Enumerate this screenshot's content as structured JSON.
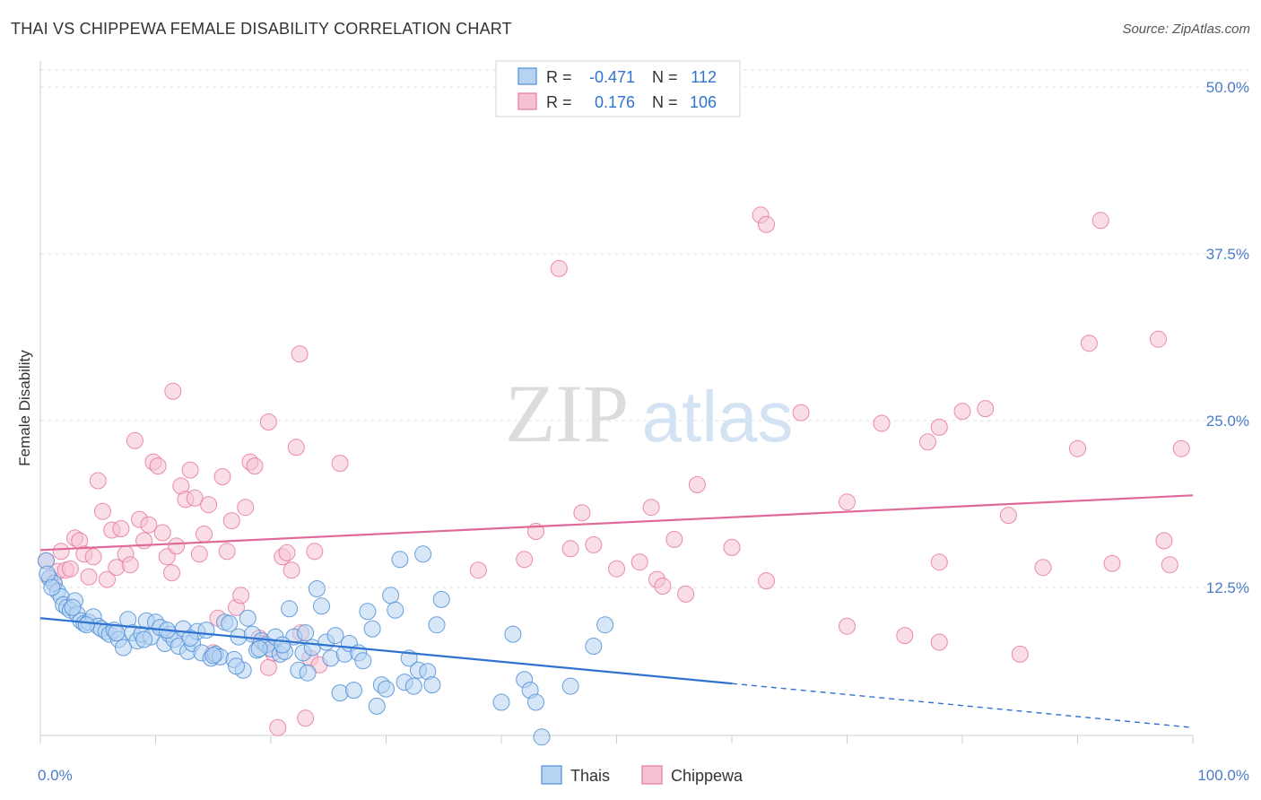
{
  "title": "THAI VS CHIPPEWA FEMALE DISABILITY CORRELATION CHART",
  "source": "Source: ZipAtlas.com",
  "watermark": {
    "zip": "ZIP",
    "atlas": "atlas"
  },
  "colors": {
    "thais": "#4f8fd6",
    "thais_fill": "#b7d3f2",
    "thais_line": "#2f72d0",
    "chippewa": "#e8789c",
    "chippewa_fill": "#f5c2d2",
    "chippewa_line": "#e0699a",
    "tick_text": "#4a7cc7"
  },
  "legend": {
    "rows": [
      {
        "r_label": "R =",
        "r_value": "-0.471",
        "n_label": "N =",
        "n_value": "112"
      },
      {
        "r_label": "R =",
        "r_value": "0.176",
        "n_label": "N =",
        "n_value": "106"
      }
    ]
  },
  "chart_data": {
    "type": "scatter",
    "xlabel": "",
    "ylabel": "Female Disability",
    "x_tick_labels": [
      "0.0%",
      "100.0%"
    ],
    "y_tick_labels": [
      "12.5%",
      "25.0%",
      "37.5%",
      "50.0%"
    ],
    "xlim": [
      0,
      100
    ],
    "ylim": [
      0,
      52
    ],
    "grid": true,
    "legend_position": "top-center",
    "series": [
      {
        "name": "Thais",
        "color": "#4f8fd6",
        "trend": {
          "x": [
            0,
            60
          ],
          "y": [
            10.2,
            5.3
          ],
          "dashed_to": [
            100,
            2.0
          ]
        },
        "points": [
          [
            0.5,
            14.5
          ],
          [
            0.8,
            13.2
          ],
          [
            1.2,
            12.8
          ],
          [
            1.5,
            12.2
          ],
          [
            1.8,
            11.8
          ],
          [
            2.0,
            11.2
          ],
          [
            2.3,
            11.0
          ],
          [
            2.6,
            10.8
          ],
          [
            3.0,
            11.5
          ],
          [
            3.2,
            10.5
          ],
          [
            3.5,
            10.0
          ],
          [
            3.8,
            9.8
          ],
          [
            4.2,
            9.9
          ],
          [
            4.6,
            10.3
          ],
          [
            5.0,
            9.6
          ],
          [
            5.3,
            9.4
          ],
          [
            5.7,
            9.2
          ],
          [
            6.0,
            9.0
          ],
          [
            6.4,
            9.3
          ],
          [
            6.8,
            8.6
          ],
          [
            7.2,
            8.0
          ],
          [
            7.6,
            10.1
          ],
          [
            8.0,
            9.1
          ],
          [
            8.4,
            8.5
          ],
          [
            8.8,
            9.0
          ],
          [
            9.2,
            10.0
          ],
          [
            9.6,
            8.8
          ],
          [
            10.0,
            9.9
          ],
          [
            10.4,
            9.5
          ],
          [
            10.8,
            8.3
          ],
          [
            11.2,
            9.0
          ],
          [
            11.6,
            8.6
          ],
          [
            12.0,
            8.1
          ],
          [
            12.4,
            9.4
          ],
          [
            12.8,
            7.7
          ],
          [
            13.2,
            8.3
          ],
          [
            13.6,
            9.2
          ],
          [
            14.0,
            7.6
          ],
          [
            14.4,
            9.3
          ],
          [
            14.8,
            7.2
          ],
          [
            15.2,
            7.5
          ],
          [
            15.6,
            7.3
          ],
          [
            16.0,
            9.9
          ],
          [
            16.4,
            9.8
          ],
          [
            16.8,
            7.1
          ],
          [
            17.2,
            8.8
          ],
          [
            17.6,
            6.3
          ],
          [
            18.0,
            10.2
          ],
          [
            18.4,
            9.0
          ],
          [
            18.8,
            7.8
          ],
          [
            19.2,
            8.5
          ],
          [
            19.6,
            8.2
          ],
          [
            20.0,
            7.9
          ],
          [
            20.4,
            8.8
          ],
          [
            20.8,
            7.5
          ],
          [
            21.2,
            7.7
          ],
          [
            21.6,
            10.9
          ],
          [
            22.0,
            8.8
          ],
          [
            22.4,
            6.3
          ],
          [
            22.8,
            7.6
          ],
          [
            23.2,
            6.1
          ],
          [
            23.6,
            8.0
          ],
          [
            24.0,
            12.4
          ],
          [
            24.4,
            11.1
          ],
          [
            24.8,
            8.4
          ],
          [
            25.2,
            7.2
          ],
          [
            25.6,
            8.9
          ],
          [
            26.0,
            4.6
          ],
          [
            26.4,
            7.5
          ],
          [
            26.8,
            8.3
          ],
          [
            27.2,
            4.8
          ],
          [
            27.6,
            7.6
          ],
          [
            28.0,
            7.0
          ],
          [
            28.4,
            10.7
          ],
          [
            28.8,
            9.4
          ],
          [
            29.2,
            3.6
          ],
          [
            29.6,
            5.2
          ],
          [
            30.0,
            4.9
          ],
          [
            30.4,
            11.9
          ],
          [
            30.8,
            10.8
          ],
          [
            31.2,
            14.6
          ],
          [
            31.6,
            5.4
          ],
          [
            32.0,
            7.2
          ],
          [
            32.4,
            5.1
          ],
          [
            32.8,
            6.3
          ],
          [
            33.2,
            15.0
          ],
          [
            33.6,
            6.2
          ],
          [
            34.0,
            5.2
          ],
          [
            34.4,
            9.7
          ],
          [
            34.8,
            11.6
          ],
          [
            40.0,
            3.9
          ],
          [
            41.0,
            9.0
          ],
          [
            42.0,
            5.6
          ],
          [
            42.5,
            4.8
          ],
          [
            43.0,
            3.9
          ],
          [
            43.5,
            1.3
          ],
          [
            46.0,
            5.1
          ],
          [
            48.0,
            8.1
          ],
          [
            49.0,
            9.7
          ],
          [
            0.6,
            13.5
          ],
          [
            1.0,
            12.5
          ],
          [
            2.8,
            11.0
          ],
          [
            4.0,
            9.7
          ],
          [
            6.6,
            9.1
          ],
          [
            9.0,
            8.6
          ],
          [
            11.0,
            9.3
          ],
          [
            13.0,
            8.7
          ],
          [
            15.0,
            7.4
          ],
          [
            17.0,
            6.6
          ],
          [
            19.0,
            7.9
          ],
          [
            21.0,
            8.2
          ],
          [
            23.0,
            9.1
          ]
        ]
      },
      {
        "name": "Chippewa",
        "color": "#e8789c",
        "trend": {
          "x": [
            0,
            100
          ],
          "y": [
            15.3,
            19.4
          ]
        },
        "points": [
          [
            0.5,
            14.5
          ],
          [
            0.8,
            13.2
          ],
          [
            1.2,
            12.8
          ],
          [
            1.5,
            13.7
          ],
          [
            1.8,
            15.2
          ],
          [
            2.2,
            13.8
          ],
          [
            2.6,
            13.9
          ],
          [
            3.0,
            16.2
          ],
          [
            3.4,
            16.0
          ],
          [
            3.8,
            15.0
          ],
          [
            4.2,
            13.3
          ],
          [
            4.6,
            14.8
          ],
          [
            5.0,
            20.5
          ],
          [
            5.4,
            18.2
          ],
          [
            5.8,
            13.1
          ],
          [
            6.2,
            16.8
          ],
          [
            6.6,
            14.0
          ],
          [
            7.0,
            16.9
          ],
          [
            7.4,
            15.0
          ],
          [
            7.8,
            14.2
          ],
          [
            8.2,
            23.5
          ],
          [
            8.6,
            17.6
          ],
          [
            9.0,
            16.0
          ],
          [
            9.4,
            17.2
          ],
          [
            9.8,
            21.9
          ],
          [
            10.2,
            21.6
          ],
          [
            10.6,
            16.6
          ],
          [
            11.0,
            14.8
          ],
          [
            11.4,
            13.6
          ],
          [
            11.8,
            15.6
          ],
          [
            12.2,
            20.1
          ],
          [
            12.6,
            19.1
          ],
          [
            13.0,
            21.3
          ],
          [
            13.4,
            19.2
          ],
          [
            13.8,
            15.0
          ],
          [
            14.2,
            16.5
          ],
          [
            14.6,
            18.7
          ],
          [
            15.0,
            7.6
          ],
          [
            15.4,
            10.2
          ],
          [
            15.8,
            20.8
          ],
          [
            16.2,
            15.2
          ],
          [
            16.6,
            17.5
          ],
          [
            17.0,
            11.0
          ],
          [
            17.4,
            11.9
          ],
          [
            17.8,
            18.5
          ],
          [
            18.2,
            21.9
          ],
          [
            18.6,
            21.6
          ],
          [
            19.0,
            8.7
          ],
          [
            19.4,
            8.3
          ],
          [
            19.8,
            6.5
          ],
          [
            20.2,
            7.6
          ],
          [
            20.6,
            2.0
          ],
          [
            21.0,
            14.8
          ],
          [
            21.4,
            15.1
          ],
          [
            21.8,
            13.8
          ],
          [
            22.2,
            23.0
          ],
          [
            22.6,
            9.1
          ],
          [
            23.0,
            2.7
          ],
          [
            23.4,
            7.2
          ],
          [
            23.8,
            15.2
          ],
          [
            24.2,
            6.7
          ],
          [
            11.5,
            27.2
          ],
          [
            19.8,
            24.9
          ],
          [
            22.5,
            30.0
          ],
          [
            26.0,
            21.8
          ],
          [
            45.0,
            36.4
          ],
          [
            62.5,
            40.4
          ],
          [
            63.0,
            39.7
          ],
          [
            92.0,
            40.0
          ],
          [
            91.0,
            30.8
          ],
          [
            97.0,
            31.1
          ],
          [
            80.0,
            25.7
          ],
          [
            82.0,
            25.9
          ],
          [
            66.0,
            25.6
          ],
          [
            73.0,
            24.8
          ],
          [
            78.0,
            24.5
          ],
          [
            77.0,
            23.4
          ],
          [
            90.0,
            22.9
          ],
          [
            99.0,
            22.9
          ],
          [
            57.0,
            20.2
          ],
          [
            53.0,
            18.5
          ],
          [
            47.0,
            18.1
          ],
          [
            70.0,
            18.9
          ],
          [
            84.0,
            17.9
          ],
          [
            43.0,
            16.7
          ],
          [
            55.0,
            16.1
          ],
          [
            60.0,
            15.5
          ],
          [
            48.0,
            15.7
          ],
          [
            46.0,
            15.4
          ],
          [
            38.0,
            13.8
          ],
          [
            42.0,
            14.6
          ],
          [
            50.0,
            13.9
          ],
          [
            52.0,
            14.4
          ],
          [
            53.5,
            13.1
          ],
          [
            54.0,
            12.6
          ],
          [
            56.0,
            12.0
          ],
          [
            63.0,
            13.0
          ],
          [
            78.0,
            14.4
          ],
          [
            87.0,
            14.0
          ],
          [
            93.0,
            14.3
          ],
          [
            98.0,
            14.2
          ],
          [
            97.5,
            16.0
          ],
          [
            70.0,
            9.6
          ],
          [
            75.0,
            8.9
          ],
          [
            78.0,
            8.4
          ],
          [
            85.0,
            7.5
          ]
        ]
      }
    ]
  }
}
